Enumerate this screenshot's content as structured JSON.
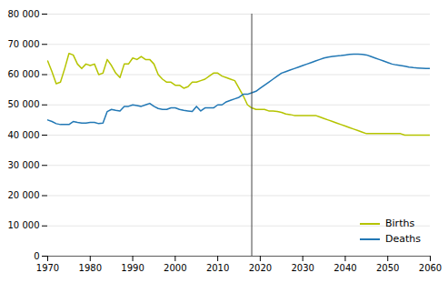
{
  "chart_data": {
    "type": "line",
    "x": [
      1970,
      1971,
      1972,
      1973,
      1974,
      1975,
      1976,
      1977,
      1978,
      1979,
      1980,
      1981,
      1982,
      1983,
      1984,
      1985,
      1986,
      1987,
      1988,
      1989,
      1990,
      1991,
      1992,
      1993,
      1994,
      1995,
      1996,
      1997,
      1998,
      1999,
      2000,
      2001,
      2002,
      2003,
      2004,
      2005,
      2006,
      2007,
      2008,
      2009,
      2010,
      2011,
      2012,
      2013,
      2014,
      2015,
      2016,
      2017,
      2018,
      2019,
      2020,
      2021,
      2022,
      2023,
      2024,
      2025,
      2026,
      2027,
      2028,
      2029,
      2030,
      2031,
      2032,
      2033,
      2034,
      2035,
      2036,
      2037,
      2038,
      2039,
      2040,
      2041,
      2042,
      2043,
      2044,
      2045,
      2046,
      2047,
      2048,
      2049,
      2050,
      2051,
      2052,
      2053,
      2054,
      2055,
      2056,
      2057,
      2058,
      2059,
      2060
    ],
    "series": [
      {
        "name": "Births",
        "color": "#b5c400",
        "values": [
          64500,
          61000,
          57000,
          57500,
          62000,
          67000,
          66500,
          63500,
          62000,
          63500,
          63000,
          63500,
          60000,
          60500,
          65000,
          63000,
          60500,
          59000,
          63500,
          63500,
          65500,
          65000,
          66000,
          65000,
          65000,
          63500,
          60000,
          58500,
          57500,
          57500,
          56500,
          56500,
          55500,
          56000,
          57500,
          57500,
          58000,
          58500,
          59500,
          60500,
          60500,
          59500,
          59000,
          58500,
          58000,
          55500,
          53000,
          50000,
          49000,
          48500,
          48500,
          48500,
          48000,
          48000,
          47800,
          47500,
          47000,
          46800,
          46500,
          46500,
          46500,
          46500,
          46500,
          46500,
          46000,
          45500,
          45000,
          44500,
          44000,
          43500,
          43000,
          42500,
          42000,
          41500,
          41000,
          40500,
          40500,
          40500,
          40500,
          40500,
          40500,
          40500,
          40500,
          40500,
          40000,
          40000,
          40000,
          40000,
          40000,
          40000,
          40000
        ]
      },
      {
        "name": "Deaths",
        "color": "#2278b5",
        "values": [
          45000,
          44500,
          43800,
          43500,
          43500,
          43500,
          44500,
          44200,
          44000,
          44000,
          44200,
          44200,
          43800,
          44000,
          47800,
          48500,
          48200,
          48000,
          49500,
          49500,
          50000,
          49800,
          49500,
          50000,
          50500,
          49500,
          48800,
          48500,
          48500,
          49000,
          49000,
          48500,
          48200,
          48000,
          47800,
          49500,
          48000,
          49000,
          49000,
          49000,
          50000,
          50000,
          51000,
          51500,
          52000,
          52500,
          53500,
          53500,
          54000,
          54500,
          55500,
          56500,
          57500,
          58500,
          59500,
          60500,
          61000,
          61500,
          62000,
          62500,
          63000,
          63500,
          64000,
          64500,
          65000,
          65500,
          65800,
          66000,
          66200,
          66300,
          66500,
          66700,
          66800,
          66800,
          66700,
          66500,
          66000,
          65500,
          65000,
          64500,
          64000,
          63500,
          63200,
          63000,
          62800,
          62500,
          62300,
          62200,
          62100,
          62000,
          62000
        ]
      }
    ],
    "xlim": [
      1970,
      2060
    ],
    "xticks": [
      1970,
      1980,
      1990,
      2000,
      2010,
      2020,
      2030,
      2040,
      2050,
      2060
    ],
    "ylim": [
      0,
      80000
    ],
    "yticks": [
      0,
      {
        "value": 10000,
        "label": "10 000"
      },
      {
        "value": 20000,
        "label": "20 000"
      },
      {
        "value": 30000,
        "label": "30 000"
      },
      {
        "value": 40000,
        "label": "40 000"
      },
      {
        "value": 50000,
        "label": "50 000"
      },
      {
        "value": 60000,
        "label": "60 000"
      },
      {
        "value": 70000,
        "label": "70 000"
      },
      {
        "value": 80000,
        "label": "80 000"
      }
    ],
    "grid": true,
    "legend": "lower right",
    "divider": {
      "x": 2018,
      "color": "#444444"
    }
  }
}
